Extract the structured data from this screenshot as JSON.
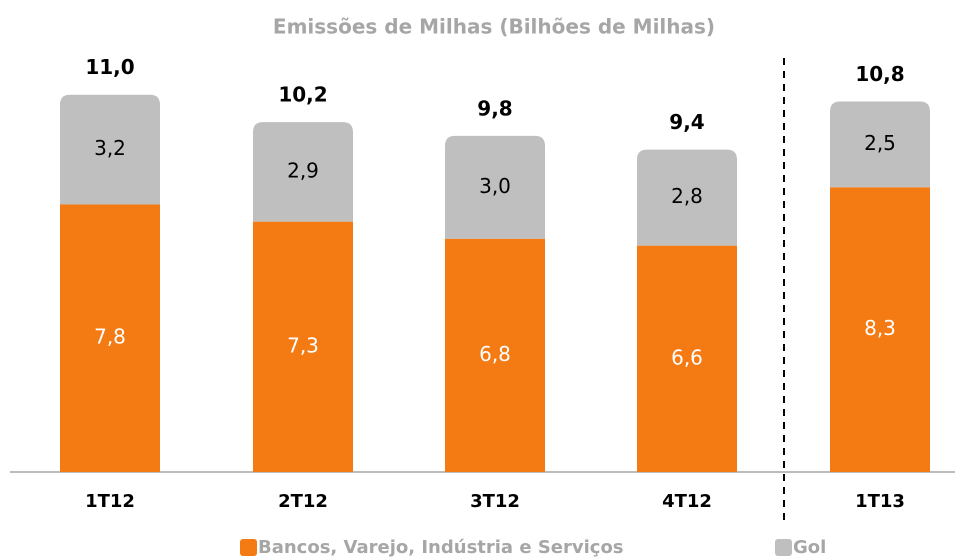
{
  "chart_data": {
    "type": "stacked_bar",
    "title": "Emissões de Milhas (Bilhões de Milhas)",
    "categories": [
      "1T12",
      "2T12",
      "3T12",
      "4T12",
      "1T13"
    ],
    "series": [
      {
        "name": "Bancos, Varejo, Indústria e Serviços",
        "color": "#f47b14",
        "values": [
          7.8,
          7.3,
          6.8,
          6.6,
          8.3
        ],
        "value_labels": [
          "7,8",
          "7,3",
          "6,8",
          "6,6",
          "8,3"
        ]
      },
      {
        "name": "Gol",
        "color": "#bfbfbf",
        "values": [
          3.2,
          2.9,
          3.0,
          2.8,
          2.5
        ],
        "value_labels": [
          "3,2",
          "2,9",
          "3,0",
          "2,8",
          "2,5"
        ]
      }
    ],
    "totals": [
      11.0,
      10.2,
      9.8,
      9.4,
      10.8
    ],
    "total_labels": [
      "11,0",
      "10,2",
      "9,8",
      "9,4",
      "10,8"
    ]
  }
}
